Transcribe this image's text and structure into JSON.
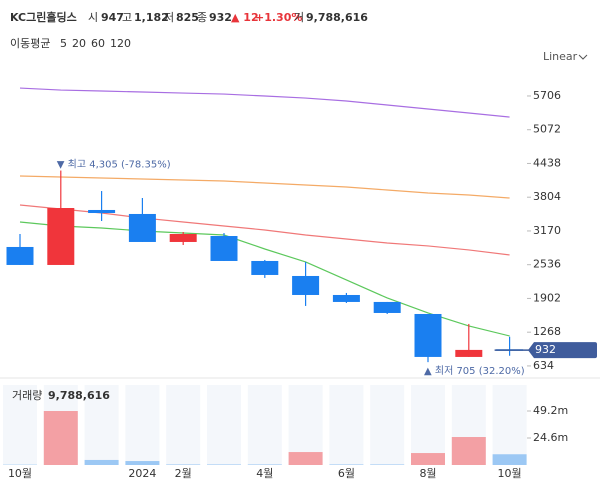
{
  "header": {
    "name": "KC그린홀딩스",
    "open_label": "시",
    "open": "947",
    "high_label": "고",
    "high": "1,182",
    "low_label": "저",
    "low": "825",
    "close_label": "종",
    "close": "932",
    "change": "▲ 12",
    "change_pct": "+1.30%",
    "volume_label": "거",
    "volume": "9,788,616"
  },
  "legend_title": "이동평균",
  "scale_mode": "Linear",
  "chart_data": {
    "type": "candlestick",
    "categories": [
      "10월",
      null,
      null,
      "2024",
      "2월",
      null,
      "4월",
      null,
      "6월",
      null,
      "8월",
      null,
      "10월"
    ],
    "open": [
      2869,
      2531,
      3564,
      3489,
      2963,
      3075,
      2606,
      2324,
      1967,
      1836,
      1610,
      803,
      947
    ],
    "high": [
      3113,
      4305,
      3920,
      3789,
      3150,
      3131,
      2625,
      2587,
      2005,
      1836,
      1610,
      1423,
      1182
    ],
    "low": [
      2531,
      2531,
      3357,
      2963,
      2906,
      2606,
      2287,
      1761,
      1817,
      1610,
      705,
      803,
      825
    ],
    "close": [
      2531,
      3601,
      3507,
      2963,
      3113,
      2606,
      2343,
      1967,
      1836,
      1629,
      803,
      935,
      932
    ],
    "up_color": "#f0353b",
    "down_color": "#1a7ff0",
    "ylim": [
      520,
      6100
    ],
    "yticks": [
      634,
      1268,
      1902,
      2536,
      3170,
      3804,
      4438,
      5072,
      5706
    ],
    "grid": false,
    "series": [
      {
        "name": "5",
        "color": "#5cc85c",
        "values": [
          3338,
          3263,
          3226,
          3169,
          3131,
          3094,
          2831,
          2587,
          2249,
          1911,
          1629,
          1385,
          1197
        ]
      },
      {
        "name": "20",
        "color": "#f07878",
        "values": [
          3658,
          3583,
          3507,
          3414,
          3338,
          3263,
          3188,
          3094,
          3019,
          2944,
          2888,
          2813,
          2719
        ]
      },
      {
        "name": "60",
        "color": "#f4aa66",
        "values": [
          4202,
          4183,
          4165,
          4146,
          4127,
          4108,
          4071,
          4033,
          3996,
          3939,
          3883,
          3845,
          3789
        ]
      },
      {
        "name": "120",
        "color": "#a86ee2",
        "values": [
          5855,
          5817,
          5799,
          5780,
          5761,
          5742,
          5705,
          5667,
          5611,
          5536,
          5461,
          5386,
          5310
        ]
      }
    ],
    "annotations": [
      {
        "text": "▼ 최고 4,305 (-78.35%)"
      },
      {
        "text": "▲ 최저 705 (32.20%)"
      }
    ],
    "volume": {
      "title": "거래량",
      "label": "9,788,616",
      "values": [
        300000,
        49200000,
        4600000,
        3600000,
        500000,
        500000,
        500000,
        11800000,
        500000,
        500000,
        10900000,
        25500000,
        9788616
      ],
      "colors": [
        "#9cc8f4",
        "#f3a0a4",
        "#9cc8f4",
        "#9cc8f4",
        "#9cc8f4",
        "#9cc8f4",
        "#9cc8f4",
        "#f3a0a4",
        "#9cc8f4",
        "#9cc8f4",
        "#f3a0a4",
        "#f3a0a4",
        "#9cc8f4"
      ],
      "ylim": [
        0,
        72900000
      ],
      "yticks": [
        {
          "value": 24600000,
          "label": "24.6m"
        },
        {
          "value": 49200000,
          "label": "49.2m"
        }
      ]
    }
  }
}
